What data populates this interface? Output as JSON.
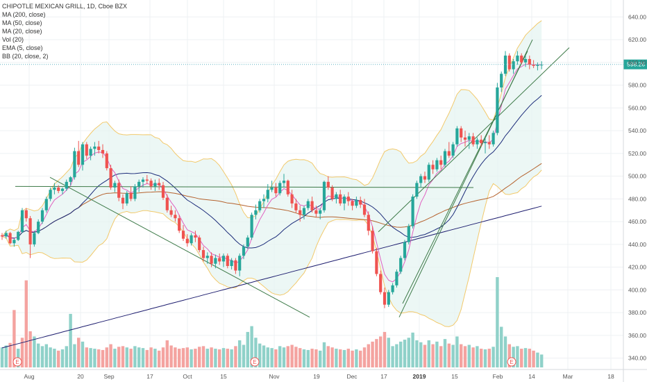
{
  "legend": {
    "title": "CHIPOTLE MEXICAN GRILL, 1D, Cboe BZX",
    "indicators": [
      "MA (200, close)",
      "MA (50, close)",
      "MA (20, close)",
      "Vol (20)",
      "EMA (5, close)",
      "BB (20, close, 2)"
    ]
  },
  "colors": {
    "up": "#26a69a",
    "down": "#ef5350",
    "up_volume": "#8fd1c9",
    "down_volume": "#f4a3a0",
    "ma200": "#1c1c6e",
    "ma50": "#b5622e",
    "ma20": "#1c2c7a",
    "ema5": "#e060c0",
    "bb_band": "#f2c96b",
    "bb_fill": "#e6f4f1",
    "trendline": "#3d7a48",
    "price_line": "#5fb3c2"
  },
  "last_price_label": "598.26",
  "event_marker_label": "E",
  "chart_data": {
    "type": "candlestick",
    "y_axis": {
      "min": 330,
      "max": 650,
      "ticks": [
        340,
        360,
        380,
        400,
        420,
        440,
        460,
        480,
        500,
        520,
        540,
        560,
        580,
        600,
        620,
        640
      ]
    },
    "x_axis": {
      "labels": [
        "Aug",
        "20",
        "Sep",
        "17",
        "Oct",
        "15",
        "Nov",
        "19",
        "Dec",
        "17",
        "2019",
        "15",
        "Feb",
        "14",
        "Mar",
        "18"
      ],
      "bold_labels": [
        "2019"
      ]
    },
    "last_price": 598.26,
    "grid": true,
    "candles": [
      [
        448,
        450,
        444,
        447
      ],
      [
        447,
        452,
        445,
        450
      ],
      [
        450,
        451,
        440,
        441
      ],
      [
        441,
        446,
        438,
        444
      ],
      [
        444,
        452,
        443,
        451
      ],
      [
        451,
        472,
        450,
        470
      ],
      [
        470,
        472,
        460,
        463
      ],
      [
        463,
        465,
        428,
        440
      ],
      [
        440,
        452,
        438,
        450
      ],
      [
        450,
        462,
        449,
        460
      ],
      [
        460,
        472,
        458,
        470
      ],
      [
        470,
        482,
        468,
        480
      ],
      [
        480,
        490,
        478,
        488
      ],
      [
        488,
        494,
        484,
        490
      ],
      [
        490,
        492,
        485,
        487
      ],
      [
        487,
        490,
        484,
        489
      ],
      [
        489,
        497,
        487,
        495
      ],
      [
        495,
        500,
        492,
        499
      ],
      [
        499,
        525,
        497,
        522
      ],
      [
        522,
        531,
        508,
        510
      ],
      [
        510,
        530,
        505,
        528
      ],
      [
        528,
        530,
        515,
        518
      ],
      [
        518,
        526,
        514,
        524
      ],
      [
        524,
        530,
        518,
        526
      ],
      [
        526,
        531,
        520,
        523
      ],
      [
        523,
        528,
        516,
        520
      ],
      [
        520,
        522,
        505,
        507
      ],
      [
        507,
        510,
        488,
        490
      ],
      [
        490,
        496,
        486,
        494
      ],
      [
        494,
        497,
        478,
        481
      ],
      [
        481,
        484,
        471,
        476
      ],
      [
        476,
        487,
        474,
        485
      ],
      [
        485,
        491,
        478,
        480
      ],
      [
        480,
        493,
        478,
        491
      ],
      [
        491,
        497,
        486,
        495
      ],
      [
        495,
        499,
        490,
        497
      ],
      [
        497,
        501,
        493,
        496
      ],
      [
        496,
        498,
        488,
        491
      ],
      [
        491,
        497,
        487,
        494
      ],
      [
        494,
        498,
        488,
        492
      ],
      [
        492,
        495,
        479,
        481
      ],
      [
        481,
        484,
        468,
        470
      ],
      [
        470,
        474,
        464,
        466
      ],
      [
        466,
        470,
        460,
        463
      ],
      [
        463,
        466,
        450,
        452
      ],
      [
        452,
        457,
        443,
        445
      ],
      [
        445,
        449,
        438,
        441
      ],
      [
        441,
        450,
        439,
        448
      ],
      [
        448,
        452,
        442,
        446
      ],
      [
        446,
        448,
        433,
        435
      ],
      [
        435,
        438,
        425,
        428
      ],
      [
        428,
        433,
        423,
        430
      ],
      [
        430,
        433,
        420,
        423
      ],
      [
        423,
        431,
        419,
        428
      ],
      [
        428,
        432,
        422,
        425
      ],
      [
        425,
        432,
        420,
        430
      ],
      [
        430,
        432,
        419,
        421
      ],
      [
        421,
        428,
        418,
        426
      ],
      [
        426,
        428,
        414,
        417
      ],
      [
        417,
        432,
        412,
        430
      ],
      [
        430,
        440,
        427,
        438
      ],
      [
        438,
        448,
        436,
        446
      ],
      [
        446,
        468,
        444,
        466
      ],
      [
        466,
        475,
        462,
        470
      ],
      [
        470,
        480,
        468,
        478
      ],
      [
        478,
        484,
        472,
        480
      ],
      [
        480,
        493,
        477,
        488
      ],
      [
        488,
        496,
        486,
        490
      ],
      [
        490,
        494,
        482,
        485
      ],
      [
        485,
        496,
        483,
        494
      ],
      [
        494,
        502,
        490,
        496
      ],
      [
        496,
        497,
        482,
        484
      ],
      [
        484,
        488,
        472,
        476
      ],
      [
        476,
        480,
        468,
        470
      ],
      [
        470,
        474,
        460,
        466
      ],
      [
        466,
        474,
        462,
        472
      ],
      [
        472,
        480,
        470,
        478
      ],
      [
        478,
        482,
        468,
        470
      ],
      [
        470,
        474,
        464,
        467
      ],
      [
        467,
        472,
        462,
        470
      ],
      [
        470,
        496,
        468,
        495
      ],
      [
        495,
        500,
        488,
        490
      ],
      [
        490,
        492,
        478,
        480
      ],
      [
        480,
        486,
        476,
        484
      ],
      [
        484,
        488,
        474,
        476
      ],
      [
        476,
        484,
        470,
        482
      ],
      [
        482,
        486,
        474,
        478
      ],
      [
        478,
        480,
        470,
        474
      ],
      [
        474,
        482,
        472,
        479
      ],
      [
        479,
        482,
        472,
        475
      ],
      [
        475,
        480,
        464,
        466
      ],
      [
        466,
        469,
        448,
        452
      ],
      [
        452,
        456,
        432,
        434
      ],
      [
        434,
        437,
        412,
        414
      ],
      [
        414,
        417,
        396,
        398
      ],
      [
        398,
        402,
        384,
        387
      ],
      [
        387,
        400,
        385,
        398
      ],
      [
        398,
        406,
        396,
        404
      ],
      [
        404,
        418,
        402,
        416
      ],
      [
        416,
        430,
        414,
        428
      ],
      [
        428,
        444,
        426,
        442
      ],
      [
        442,
        458,
        440,
        456
      ],
      [
        456,
        484,
        454,
        482
      ],
      [
        482,
        496,
        480,
        494
      ],
      [
        494,
        502,
        490,
        500
      ],
      [
        500,
        504,
        494,
        497
      ],
      [
        497,
        512,
        495,
        510
      ],
      [
        510,
        514,
        502,
        506
      ],
      [
        506,
        516,
        504,
        514
      ],
      [
        514,
        518,
        506,
        510
      ],
      [
        510,
        524,
        508,
        522
      ],
      [
        522,
        530,
        516,
        518
      ],
      [
        518,
        530,
        516,
        528
      ],
      [
        528,
        544,
        526,
        542
      ],
      [
        542,
        544,
        530,
        534
      ],
      [
        534,
        540,
        526,
        532
      ],
      [
        532,
        538,
        524,
        535
      ],
      [
        535,
        538,
        526,
        528
      ],
      [
        528,
        534,
        524,
        532
      ],
      [
        532,
        536,
        526,
        529
      ],
      [
        529,
        534,
        520,
        530
      ],
      [
        530,
        536,
        524,
        528
      ],
      [
        528,
        540,
        526,
        538
      ],
      [
        538,
        582,
        536,
        578
      ],
      [
        578,
        592,
        574,
        590
      ],
      [
        590,
        610,
        588,
        606
      ],
      [
        606,
        608,
        592,
        594
      ],
      [
        594,
        603,
        590,
        601
      ],
      [
        601,
        610,
        598,
        606
      ],
      [
        606,
        608,
        598,
        600
      ],
      [
        600,
        606,
        596,
        603
      ],
      [
        603,
        606,
        594,
        598
      ],
      [
        598,
        602,
        595,
        597
      ],
      [
        597,
        600,
        593,
        598
      ],
      [
        598,
        601,
        594,
        598
      ]
    ],
    "volume": [
      [
        62,
        "up"
      ],
      [
        68,
        "up"
      ],
      [
        76,
        "down"
      ],
      [
        178,
        "down"
      ],
      [
        58,
        "up"
      ],
      [
        92,
        "down"
      ],
      [
        270,
        "down"
      ],
      [
        112,
        "down"
      ],
      [
        96,
        "up"
      ],
      [
        74,
        "up"
      ],
      [
        66,
        "up"
      ],
      [
        72,
        "up"
      ],
      [
        62,
        "up"
      ],
      [
        58,
        "up"
      ],
      [
        52,
        "down"
      ],
      [
        56,
        "up"
      ],
      [
        66,
        "up"
      ],
      [
        166,
        "up"
      ],
      [
        72,
        "up"
      ],
      [
        92,
        "down"
      ],
      [
        80,
        "up"
      ],
      [
        62,
        "down"
      ],
      [
        60,
        "up"
      ],
      [
        58,
        "up"
      ],
      [
        56,
        "down"
      ],
      [
        54,
        "down"
      ],
      [
        62,
        "down"
      ],
      [
        72,
        "down"
      ],
      [
        58,
        "up"
      ],
      [
        64,
        "down"
      ],
      [
        66,
        "down"
      ],
      [
        62,
        "up"
      ],
      [
        58,
        "down"
      ],
      [
        66,
        "up"
      ],
      [
        62,
        "up"
      ],
      [
        60,
        "up"
      ],
      [
        54,
        "down"
      ],
      [
        62,
        "down"
      ],
      [
        58,
        "up"
      ],
      [
        52,
        "down"
      ],
      [
        62,
        "down"
      ],
      [
        84,
        "down"
      ],
      [
        68,
        "down"
      ],
      [
        62,
        "down"
      ],
      [
        58,
        "down"
      ],
      [
        60,
        "down"
      ],
      [
        62,
        "down"
      ],
      [
        56,
        "up"
      ],
      [
        58,
        "down"
      ],
      [
        64,
        "down"
      ],
      [
        66,
        "down"
      ],
      [
        58,
        "up"
      ],
      [
        62,
        "down"
      ],
      [
        58,
        "up"
      ],
      [
        56,
        "down"
      ],
      [
        60,
        "up"
      ],
      [
        58,
        "down"
      ],
      [
        56,
        "up"
      ],
      [
        66,
        "down"
      ],
      [
        84,
        "up"
      ],
      [
        70,
        "up"
      ],
      [
        110,
        "up"
      ],
      [
        128,
        "up"
      ],
      [
        92,
        "up"
      ],
      [
        74,
        "up"
      ],
      [
        68,
        "up"
      ],
      [
        62,
        "up"
      ],
      [
        60,
        "up"
      ],
      [
        56,
        "down"
      ],
      [
        66,
        "up"
      ],
      [
        62,
        "up"
      ],
      [
        66,
        "down"
      ],
      [
        70,
        "down"
      ],
      [
        64,
        "down"
      ],
      [
        60,
        "down"
      ],
      [
        56,
        "up"
      ],
      [
        54,
        "up"
      ],
      [
        58,
        "down"
      ],
      [
        56,
        "down"
      ],
      [
        52,
        "up"
      ],
      [
        78,
        "up"
      ],
      [
        66,
        "down"
      ],
      [
        62,
        "down"
      ],
      [
        58,
        "up"
      ],
      [
        56,
        "down"
      ],
      [
        54,
        "up"
      ],
      [
        58,
        "down"
      ],
      [
        52,
        "down"
      ],
      [
        56,
        "up"
      ],
      [
        52,
        "down"
      ],
      [
        62,
        "down"
      ],
      [
        72,
        "down"
      ],
      [
        80,
        "down"
      ],
      [
        88,
        "down"
      ],
      [
        96,
        "down"
      ],
      [
        110,
        "down"
      ],
      [
        92,
        "up"
      ],
      [
        66,
        "up"
      ],
      [
        72,
        "up"
      ],
      [
        80,
        "up"
      ],
      [
        86,
        "up"
      ],
      [
        92,
        "up"
      ],
      [
        108,
        "up"
      ],
      [
        84,
        "up"
      ],
      [
        78,
        "up"
      ],
      [
        70,
        "down"
      ],
      [
        84,
        "up"
      ],
      [
        72,
        "down"
      ],
      [
        80,
        "up"
      ],
      [
        66,
        "down"
      ],
      [
        88,
        "up"
      ],
      [
        74,
        "down"
      ],
      [
        70,
        "up"
      ],
      [
        96,
        "up"
      ],
      [
        72,
        "down"
      ],
      [
        66,
        "down"
      ],
      [
        70,
        "up"
      ],
      [
        62,
        "down"
      ],
      [
        66,
        "up"
      ],
      [
        58,
        "down"
      ],
      [
        56,
        "up"
      ],
      [
        58,
        "down"
      ],
      [
        64,
        "up"
      ],
      [
        280,
        "up"
      ],
      [
        126,
        "up"
      ],
      [
        96,
        "up"
      ],
      [
        72,
        "down"
      ],
      [
        64,
        "up"
      ],
      [
        66,
        "up"
      ],
      [
        58,
        "down"
      ],
      [
        60,
        "up"
      ],
      [
        58,
        "down"
      ],
      [
        52,
        "down"
      ],
      [
        46,
        "up"
      ],
      [
        40,
        "up"
      ]
    ]
  }
}
